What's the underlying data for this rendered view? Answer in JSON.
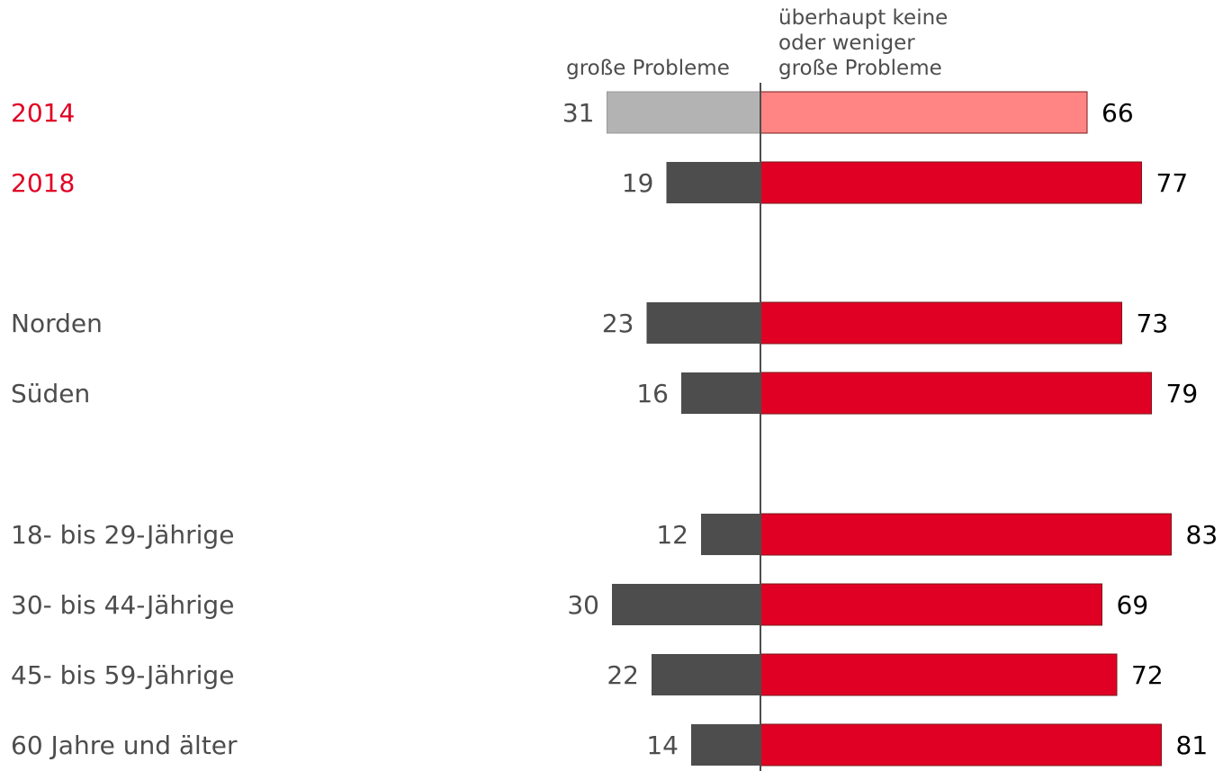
{
  "chart_data": {
    "type": "bar",
    "orientation": "horizontal-diverging",
    "column_headers": {
      "left": "große Probleme",
      "right": [
        "überhaupt keine",
        "oder weniger",
        "große Probleme"
      ]
    },
    "categories": [
      "2014",
      "2018",
      "Norden",
      "Süden",
      "18- bis 29-Jährige",
      "30- bis 44-Jährige",
      "45- bis 59-Jährige",
      "60 Jahre und älter"
    ],
    "series": [
      {
        "values": [
          31,
          19,
          23,
          16,
          12,
          30,
          22,
          14
        ]
      },
      {
        "values": [
          66,
          77,
          73,
          79,
          83,
          69,
          72,
          81
        ]
      }
    ],
    "colors": {
      "left_2014": "#b3b3b3",
      "right_2014": "#ff8585",
      "left": "#4d4d4d",
      "right": "#e00024",
      "year_label": "#e00024",
      "label": "#4d4d4d",
      "right_value": "#000000",
      "axis": "#4d4d4d"
    }
  }
}
